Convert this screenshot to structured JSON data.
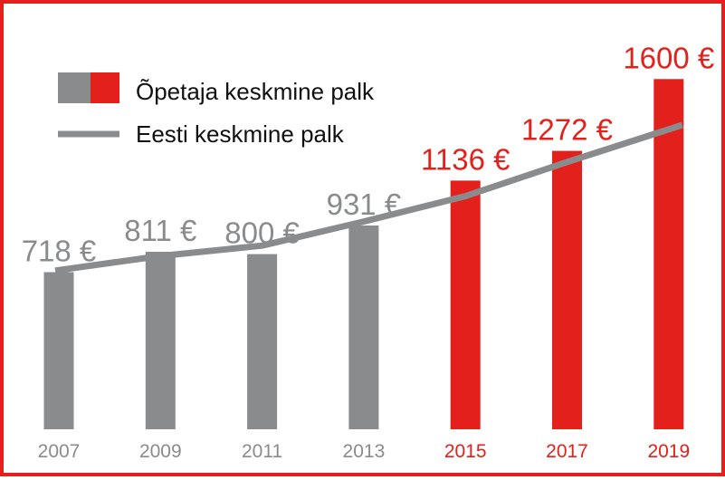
{
  "colors": {
    "frame": "#e3201b",
    "gray_bar": "#8a8b8d",
    "red_bar": "#e3201b",
    "line": "#8a8b8d",
    "legend_text": "#111111",
    "gray_label": "#8a8b8d",
    "red_label": "#e3201b"
  },
  "legend": {
    "teacher_label": "Õpetaja keskmine palk",
    "estonia_label": "Eesti keskmine palk"
  },
  "chart_data": {
    "type": "bar",
    "categories": [
      "2007",
      "2009",
      "2011",
      "2013",
      "2015",
      "2017",
      "2019"
    ],
    "series": [
      {
        "name": "Õpetaja keskmine palk",
        "kind": "bar",
        "values": [
          718,
          811,
          800,
          931,
          1136,
          1272,
          1600
        ],
        "data_labels": [
          "718 €",
          "811 €",
          "800 €",
          "931 €",
          "1136 €",
          "1272 €",
          "1600 €"
        ],
        "highlight_from_category": "2015"
      },
      {
        "name": "Eesti keskmine palk",
        "kind": "line",
        "values": [
          725,
          792,
          839,
          949,
          1065,
          1221,
          1390
        ]
      }
    ],
    "ylim": [
      0,
      1700
    ],
    "grid": false,
    "legend_position": "top-left"
  }
}
